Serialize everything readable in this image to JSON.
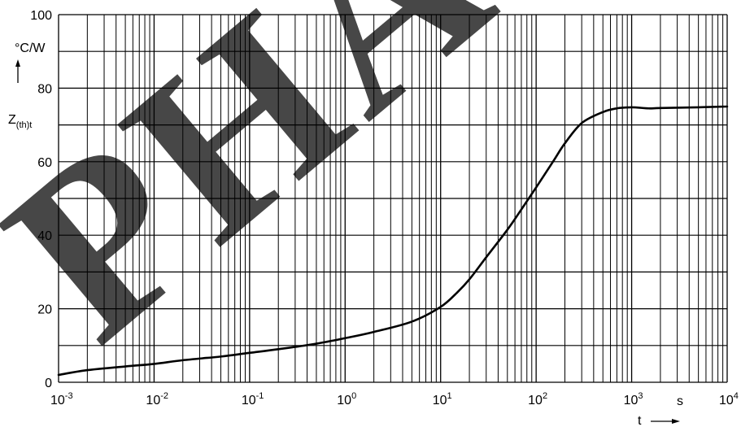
{
  "chart_data": {
    "type": "line",
    "xscale": "log",
    "xlim": [
      0.001,
      10000
    ],
    "ylim": [
      0,
      100
    ],
    "grid": true,
    "x_ticks": [
      {
        "value": 0.001,
        "base": "10",
        "exp": "-3"
      },
      {
        "value": 0.01,
        "base": "10",
        "exp": "-2"
      },
      {
        "value": 0.1,
        "base": "10",
        "exp": "-1"
      },
      {
        "value": 1,
        "base": "10",
        "exp": "0"
      },
      {
        "value": 10,
        "base": "10",
        "exp": "1"
      },
      {
        "value": 100,
        "base": "10",
        "exp": "2"
      },
      {
        "value": 1000,
        "base": "10",
        "exp": "3"
      },
      {
        "value": 10000,
        "base": "10",
        "exp": "4"
      }
    ],
    "y_ticks": [
      0,
      20,
      40,
      60,
      80,
      100
    ],
    "y_gridlines": [
      0,
      10,
      20,
      30,
      40,
      50,
      60,
      70,
      80,
      90,
      100
    ],
    "x_unit": "s",
    "xlabel": "t",
    "ylabel": {
      "main": "Z",
      "sub": "(th)t"
    },
    "y_unit": "°C/W",
    "watermark": "PHASE",
    "series": [
      {
        "x": [
          0.001,
          0.002,
          0.005,
          0.01,
          0.02,
          0.05,
          0.1,
          0.2,
          0.5,
          1,
          2,
          5,
          10,
          15,
          20,
          30,
          50,
          70,
          100,
          150,
          200,
          300,
          500,
          700,
          1000,
          1500,
          2000,
          5000,
          10000
        ],
        "y": [
          2,
          3.3,
          4.3,
          5.0,
          6.0,
          7.0,
          8.0,
          9.0,
          10.5,
          12.0,
          13.7,
          16.5,
          20.5,
          24.5,
          28,
          34,
          41.5,
          47,
          53,
          60,
          65,
          70.5,
          73.5,
          74.5,
          74.8,
          74.5,
          74.6,
          74.8,
          75.0
        ]
      }
    ]
  }
}
